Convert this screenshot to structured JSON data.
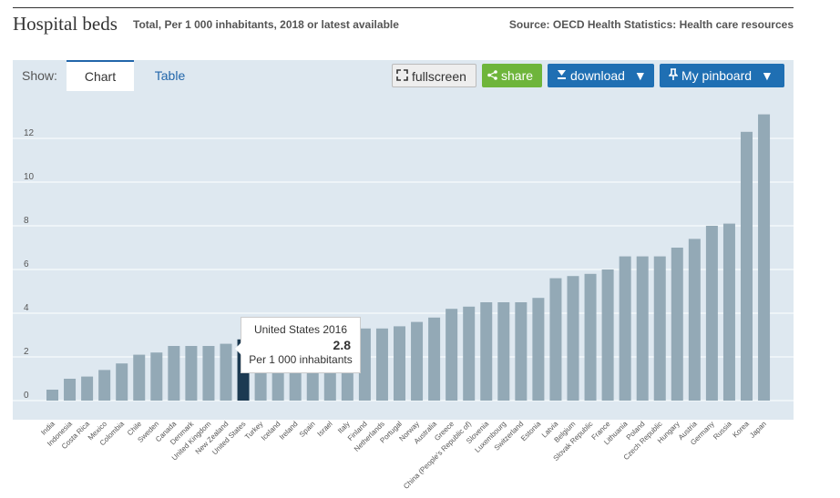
{
  "header": {
    "title": "Hospital beds",
    "subtitle": "Total, Per 1 000 inhabitants, 2018 or latest available",
    "source": "Source: OECD Health Statistics: Health care resources"
  },
  "toolbar": {
    "show_label": "Show:",
    "tab_chart": "Chart",
    "tab_table": "Table",
    "fullscreen_label": "fullscreen",
    "share_label": "share",
    "download_label": "download",
    "pinboard_label": "My pinboard"
  },
  "tooltip": {
    "title": "United States 2016",
    "value": "2.8",
    "unit": "Per 1 000 inhabitants"
  },
  "colors": {
    "bar": "#93a9b6",
    "bar_highlight": "#1c3a52",
    "plot_bg": "#dee8f0"
  },
  "chart_data": {
    "type": "bar",
    "ylim": [
      0,
      13.5
    ],
    "yticks": [
      0,
      2,
      4,
      6,
      8,
      10,
      12
    ],
    "grid": true,
    "highlight": "United States",
    "categories": [
      "India",
      "Indonesia",
      "Costa Rica",
      "Mexico",
      "Colombia",
      "Chile",
      "Sweden",
      "Canada",
      "Denmark",
      "United Kingdom",
      "New Zealand",
      "United States",
      "Turkey",
      "Iceland",
      "Ireland",
      "Spain",
      "Israel",
      "Italy",
      "Finland",
      "Netherlands",
      "Portugal",
      "Norway",
      "Australia",
      "Greece",
      "China (People's Republic of)",
      "Slovenia",
      "Luxembourg",
      "Switzerland",
      "Estonia",
      "Latvia",
      "Belgium",
      "Slovak Republic",
      "France",
      "Lithuania",
      "Poland",
      "Czech Republic",
      "Hungary",
      "Austria",
      "Germany",
      "Russia",
      "Korea",
      "Japan"
    ],
    "values": [
      0.5,
      1.0,
      1.1,
      1.4,
      1.7,
      2.1,
      2.2,
      2.5,
      2.5,
      2.5,
      2.6,
      2.8,
      2.8,
      2.8,
      2.9,
      3.0,
      3.0,
      3.1,
      3.3,
      3.3,
      3.4,
      3.6,
      3.8,
      4.2,
      4.3,
      4.5,
      4.5,
      4.5,
      4.7,
      5.6,
      5.7,
      5.8,
      6.0,
      6.6,
      6.6,
      6.6,
      7.0,
      7.4,
      8.0,
      8.1,
      12.3,
      13.1
    ]
  }
}
